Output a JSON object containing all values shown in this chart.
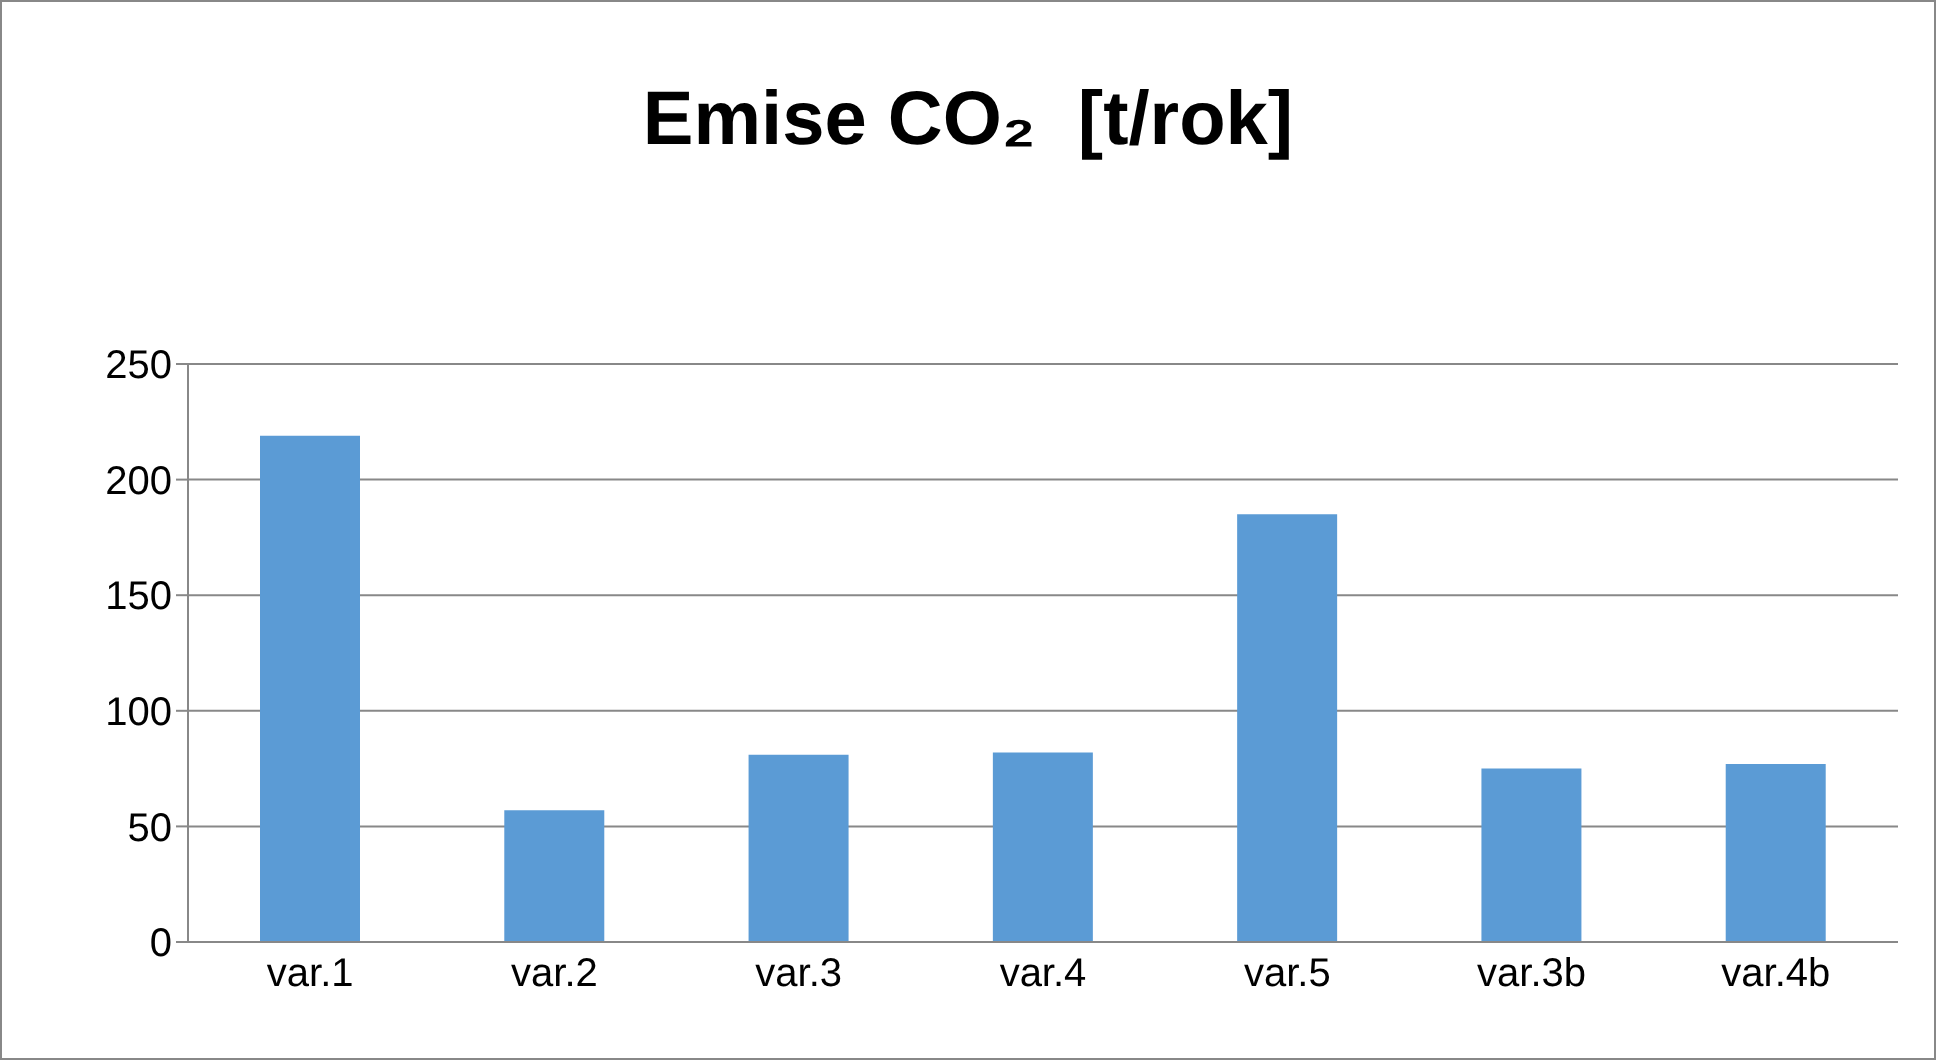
{
  "chart_data": {
    "type": "bar",
    "title": "Emise CO₂  [t/rok]",
    "categories": [
      "var.1",
      "var.2",
      "var.3",
      "var.4",
      "var.5",
      "var.3b",
      "var.4b"
    ],
    "values": [
      219,
      57,
      81,
      82,
      185,
      75,
      77
    ],
    "color": "#5b9bd5",
    "ylim": [
      0,
      250
    ],
    "yticks": [
      0,
      50,
      100,
      150,
      200,
      250
    ],
    "grid": "y"
  }
}
